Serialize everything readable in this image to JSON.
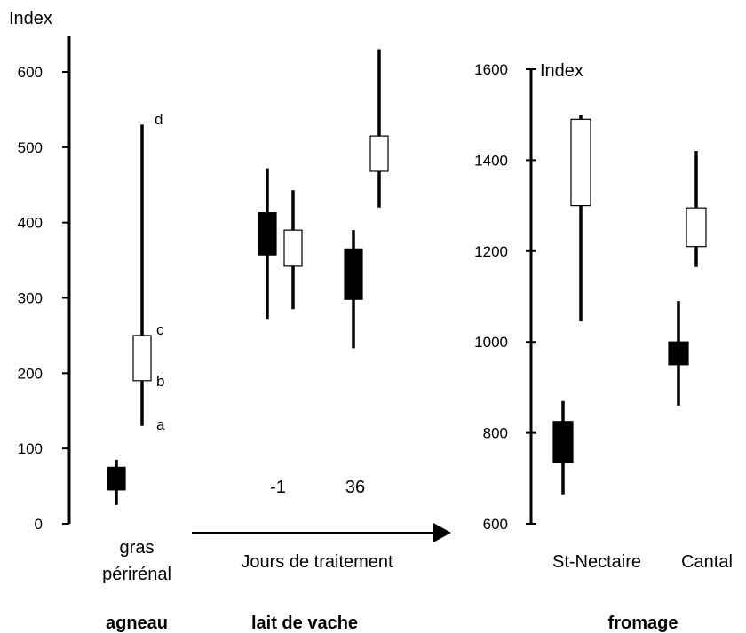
{
  "chart_data": [
    {
      "type": "boxplot",
      "panel": "agneau",
      "ylabel": "Index",
      "ylim": [
        0,
        650
      ],
      "yticks": [
        "0",
        "100",
        "200",
        "300",
        "400",
        "500",
        "600"
      ],
      "category": "gras\npérirénal",
      "category_lines": [
        "gras",
        "périrénal"
      ],
      "group_label": "agneau",
      "boxes": [
        {
          "fill": "black",
          "min": 25,
          "q1": 45,
          "q3": 75,
          "max": 85
        },
        {
          "fill": "white",
          "min": 130,
          "q1": 190,
          "q3": 250,
          "max": 530
        }
      ],
      "annotations": [
        "a",
        "b",
        "c",
        "d"
      ]
    },
    {
      "type": "boxplot",
      "panel": "lait de vache",
      "ylim": [
        0,
        650
      ],
      "xlabel": "Jours de traitement",
      "categories": [
        "-1",
        "36"
      ],
      "group_label": "lait de vache",
      "boxes": [
        {
          "category": "-1",
          "fill": "black",
          "min": 272,
          "q1": 357,
          "q3": 413,
          "max": 472
        },
        {
          "category": "-1",
          "fill": "white",
          "min": 285,
          "q1": 342,
          "q3": 390,
          "max": 443
        },
        {
          "category": "36",
          "fill": "black",
          "min": 233,
          "q1": 298,
          "q3": 365,
          "max": 390
        },
        {
          "category": "36",
          "fill": "white",
          "min": 420,
          "q1": 468,
          "q3": 515,
          "max": 630
        }
      ]
    },
    {
      "type": "boxplot",
      "panel": "fromage",
      "ylabel": "Index",
      "ylim": [
        600,
        1600
      ],
      "yticks": [
        "600",
        "800",
        "1000",
        "1200",
        "1400",
        "1600"
      ],
      "categories": [
        "St-Nectaire",
        "Cantal"
      ],
      "group_label": "fromage",
      "boxes": [
        {
          "category": "St-Nectaire",
          "fill": "black",
          "min": 665,
          "q1": 735,
          "q3": 825,
          "max": 870
        },
        {
          "category": "St-Nectaire",
          "fill": "white",
          "min": 1045,
          "q1": 1300,
          "q3": 1490,
          "max": 1500
        },
        {
          "category": "Cantal",
          "fill": "black",
          "min": 860,
          "q1": 950,
          "q3": 1000,
          "max": 1090
        },
        {
          "category": "Cantal",
          "fill": "white",
          "min": 1165,
          "q1": 1210,
          "q3": 1295,
          "max": 1420
        }
      ]
    }
  ]
}
